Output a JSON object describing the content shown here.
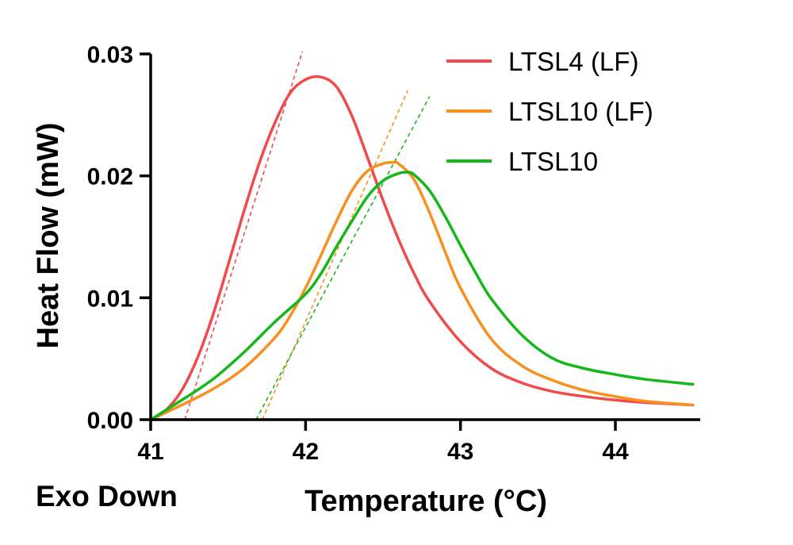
{
  "chart_data": {
    "type": "line",
    "title": "",
    "xlabel": "Temperature (°C)",
    "ylabel": "Heat Flow (mW)",
    "annotation": "Exo Down",
    "xlim": [
      41,
      44.5
    ],
    "ylim": [
      0,
      0.03
    ],
    "xticks": [
      41,
      42,
      43,
      44
    ],
    "xtick_labels": [
      "41",
      "42",
      "43",
      "44"
    ],
    "yticks": [
      0,
      0.01,
      0.02,
      0.03
    ],
    "ytick_labels": [
      "0.00",
      "0.01",
      "0.02",
      "0.03"
    ],
    "grid": false,
    "legend_position": "top-right",
    "series": [
      {
        "name": "LTSL4 (LF)",
        "color": "#f04a4a",
        "x": [
          41.0,
          41.1,
          41.2,
          41.3,
          41.4,
          41.5,
          41.6,
          41.7,
          41.8,
          41.9,
          42.0,
          42.1,
          42.2,
          42.3,
          42.4,
          42.5,
          42.6,
          42.7,
          42.8,
          43.0,
          43.2,
          43.4,
          43.6,
          43.8,
          44.0,
          44.2,
          44.5
        ],
        "y": [
          0.0,
          0.0008,
          0.0024,
          0.005,
          0.0085,
          0.0127,
          0.017,
          0.021,
          0.0243,
          0.0268,
          0.0279,
          0.0281,
          0.0273,
          0.0249,
          0.0215,
          0.018,
          0.0148,
          0.012,
          0.0097,
          0.0064,
          0.0042,
          0.003,
          0.0023,
          0.0019,
          0.0016,
          0.0014,
          0.0012
        ]
      },
      {
        "name": "LTSL10 (LF)",
        "color": "#f7901e",
        "x": [
          41.0,
          41.2,
          41.4,
          41.6,
          41.8,
          41.9,
          42.0,
          42.1,
          42.2,
          42.3,
          42.4,
          42.5,
          42.56,
          42.6,
          42.7,
          42.8,
          42.9,
          43.0,
          43.2,
          43.4,
          43.6,
          43.8,
          44.0,
          44.2,
          44.5
        ],
        "y": [
          0.0,
          0.0012,
          0.0025,
          0.0042,
          0.0067,
          0.0085,
          0.0108,
          0.0135,
          0.0163,
          0.0188,
          0.0204,
          0.021,
          0.0211,
          0.021,
          0.0197,
          0.017,
          0.0138,
          0.0108,
          0.0066,
          0.0044,
          0.0032,
          0.0024,
          0.0019,
          0.0015,
          0.0012
        ]
      },
      {
        "name": "LTSL10",
        "color": "#16b71a",
        "x": [
          41.0,
          41.2,
          41.4,
          41.6,
          41.8,
          42.0,
          42.1,
          42.2,
          42.3,
          42.4,
          42.5,
          42.6,
          42.66,
          42.7,
          42.8,
          42.9,
          43.0,
          43.1,
          43.2,
          43.4,
          43.6,
          43.8,
          44.0,
          44.2,
          44.5
        ],
        "y": [
          0.0,
          0.0016,
          0.0033,
          0.0055,
          0.008,
          0.0103,
          0.012,
          0.0142,
          0.0163,
          0.0183,
          0.0196,
          0.0202,
          0.0203,
          0.0201,
          0.0188,
          0.0167,
          0.0143,
          0.012,
          0.0099,
          0.0069,
          0.005,
          0.0042,
          0.0037,
          0.0033,
          0.0029
        ]
      }
    ],
    "onset_lines": [
      {
        "series": "LTSL4 (LF)",
        "color": "#f04a4a",
        "x": [
          41.22,
          41.98
        ],
        "y": [
          0.0,
          0.0302
        ]
      },
      {
        "series": "LTSL10 (LF)",
        "color": "#f7901e",
        "x": [
          41.72,
          42.66
        ],
        "y": [
          0.0,
          0.027
        ]
      },
      {
        "series": "LTSL10",
        "color": "#16b71a",
        "x": [
          41.68,
          42.8
        ],
        "y": [
          0.0,
          0.0265
        ]
      }
    ]
  }
}
